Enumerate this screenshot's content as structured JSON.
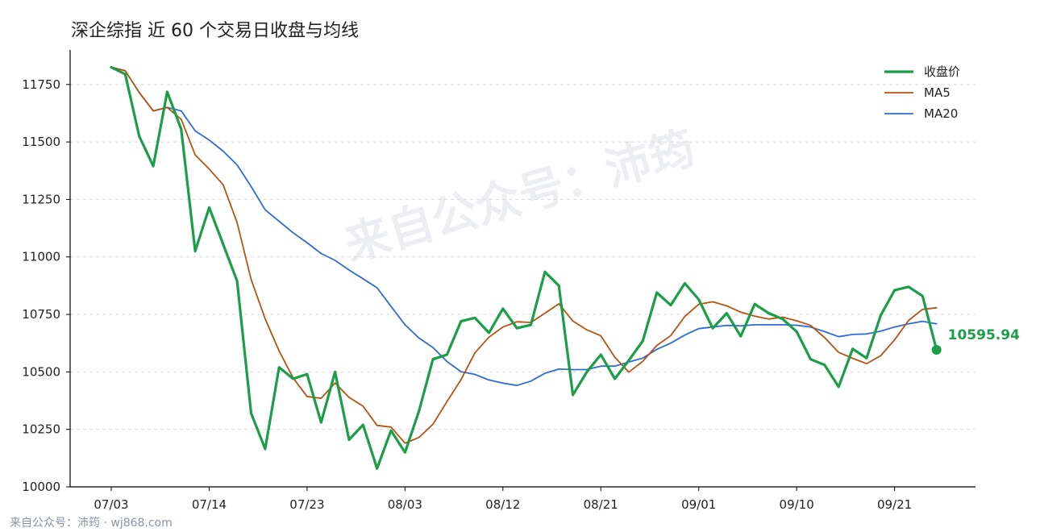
{
  "footer": "来自公众号：沛筠 · wj868.com",
  "watermark": "来自公众号：沛筠",
  "colors": {
    "close": "#1a9e47",
    "ma5": "#b8530f",
    "ma20": "#2f6bd8",
    "axis": "#000000"
  },
  "chart_data": {
    "type": "line",
    "title": "深企综指 近 60 个交易日收盘与均线",
    "xlabel": "",
    "ylabel": "",
    "ylim": [
      10000,
      11900
    ],
    "yticks": [
      10000,
      10250,
      10500,
      10750,
      11000,
      11250,
      11500,
      11750
    ],
    "xtick_labels": [
      "07/03",
      "07/14",
      "07/23",
      "08/03",
      "08/12",
      "08/21",
      "09/01",
      "09/10",
      "09/21"
    ],
    "xtick_index": [
      0,
      7,
      14,
      21,
      28,
      35,
      42,
      49,
      56
    ],
    "grid": true,
    "legend_position": "top-right",
    "last_value_label": "10595.94",
    "series": [
      {
        "name": "收盘价",
        "values": [
          11825,
          11795,
          11525,
          11395,
          11718,
          11555,
          11025,
          11215,
          11055,
          10895,
          10320,
          10165,
          10520,
          10470,
          10490,
          10280,
          10500,
          10205,
          10270,
          10080,
          10245,
          10150,
          10330,
          10555,
          10575,
          10720,
          10735,
          10670,
          10775,
          10690,
          10705,
          10935,
          10875,
          10400,
          10500,
          10575,
          10470,
          10550,
          10635,
          10845,
          10790,
          10885,
          10815,
          10690,
          10755,
          10655,
          10795,
          10755,
          10730,
          10675,
          10555,
          10530,
          10435,
          10600,
          10560,
          10745,
          10855,
          10870,
          10830,
          10595.94
        ]
      },
      {
        "name": "MA5",
        "values": [
          11825,
          11810,
          11715,
          11635,
          11650,
          11598,
          11444,
          11382,
          11314,
          11149,
          10902,
          10731,
          10591,
          10474,
          10393,
          10385,
          10452,
          10389,
          10351,
          10267,
          10260,
          10190,
          10215,
          10272,
          10371,
          10466,
          10583,
          10651,
          10695,
          10718,
          10715,
          10755,
          10796,
          10721,
          10683,
          10657,
          10564,
          10499,
          10546,
          10615,
          10658,
          10741,
          10794,
          10805,
          10787,
          10760,
          10742,
          10730,
          10738,
          10722,
          10702,
          10649,
          10585,
          10559,
          10536,
          10570,
          10639,
          10724,
          10772,
          10779
        ]
      },
      {
        "name": "MA20",
        "values": [
          11825,
          11810,
          11715,
          11635,
          11650,
          11635,
          11548,
          11508,
          11460,
          11400,
          11306,
          11205,
          11155,
          11105,
          11062,
          11015,
          10985,
          10943,
          10905,
          10866,
          10785,
          10705,
          10647,
          10606,
          10545,
          10501,
          10489,
          10465,
          10451,
          10441,
          10460,
          10494,
          10512,
          10510,
          10510,
          10525,
          10525,
          10543,
          10560,
          10598,
          10625,
          10660,
          10688,
          10695,
          10702,
          10700,
          10705,
          10705,
          10705,
          10703,
          10695,
          10675,
          10653,
          10663,
          10665,
          10677,
          10695,
          10709,
          10720,
          10709
        ]
      }
    ]
  }
}
